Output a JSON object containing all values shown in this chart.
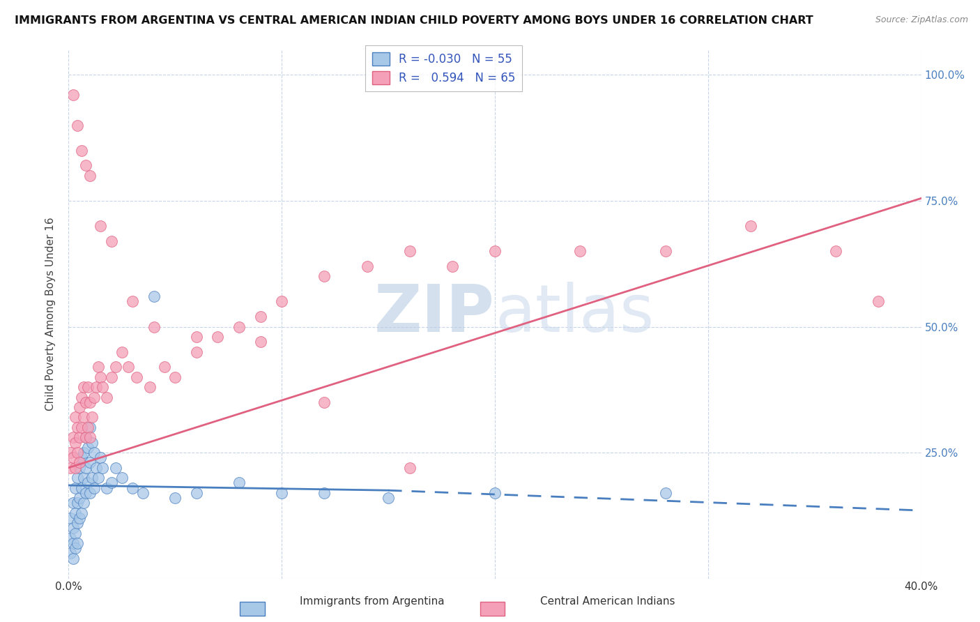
{
  "title": "IMMIGRANTS FROM ARGENTINA VS CENTRAL AMERICAN INDIAN CHILD POVERTY AMONG BOYS UNDER 16 CORRELATION CHART",
  "source": "Source: ZipAtlas.com",
  "ylabel": "Child Poverty Among Boys Under 16",
  "xlim": [
    0.0,
    0.4
  ],
  "ylim": [
    0.0,
    1.05
  ],
  "legend_R1": "-0.030",
  "legend_N1": "55",
  "legend_R2": "0.594",
  "legend_N2": "65",
  "color_blue": "#a8c8e8",
  "color_pink": "#f4a0b8",
  "line_blue": "#4a7fbf",
  "line_pink": "#e06080",
  "watermark_color": "#c8d8f0",
  "scatter_blue_x": [
    0.001,
    0.001,
    0.001,
    0.002,
    0.002,
    0.002,
    0.002,
    0.003,
    0.003,
    0.003,
    0.003,
    0.004,
    0.004,
    0.004,
    0.004,
    0.005,
    0.005,
    0.005,
    0.006,
    0.006,
    0.006,
    0.007,
    0.007,
    0.007,
    0.008,
    0.008,
    0.008,
    0.009,
    0.009,
    0.01,
    0.01,
    0.01,
    0.011,
    0.011,
    0.012,
    0.012,
    0.013,
    0.014,
    0.015,
    0.016,
    0.018,
    0.02,
    0.022,
    0.025,
    0.03,
    0.035,
    0.04,
    0.05,
    0.06,
    0.08,
    0.1,
    0.12,
    0.15,
    0.2,
    0.28
  ],
  "scatter_blue_y": [
    0.12,
    0.08,
    0.05,
    0.15,
    0.1,
    0.07,
    0.04,
    0.18,
    0.13,
    0.09,
    0.06,
    0.2,
    0.15,
    0.11,
    0.07,
    0.22,
    0.16,
    0.12,
    0.24,
    0.18,
    0.13,
    0.25,
    0.2,
    0.15,
    0.28,
    0.22,
    0.17,
    0.26,
    0.19,
    0.3,
    0.23,
    0.17,
    0.27,
    0.2,
    0.25,
    0.18,
    0.22,
    0.2,
    0.24,
    0.22,
    0.18,
    0.19,
    0.22,
    0.2,
    0.18,
    0.17,
    0.56,
    0.16,
    0.17,
    0.19,
    0.17,
    0.17,
    0.16,
    0.17,
    0.17
  ],
  "scatter_pink_x": [
    0.001,
    0.001,
    0.002,
    0.002,
    0.003,
    0.003,
    0.003,
    0.004,
    0.004,
    0.005,
    0.005,
    0.005,
    0.006,
    0.006,
    0.007,
    0.007,
    0.008,
    0.008,
    0.009,
    0.009,
    0.01,
    0.01,
    0.011,
    0.012,
    0.013,
    0.014,
    0.015,
    0.016,
    0.018,
    0.02,
    0.022,
    0.025,
    0.028,
    0.032,
    0.038,
    0.045,
    0.05,
    0.06,
    0.07,
    0.08,
    0.09,
    0.1,
    0.12,
    0.14,
    0.16,
    0.18,
    0.2,
    0.24,
    0.28,
    0.32,
    0.36,
    0.38,
    0.002,
    0.004,
    0.006,
    0.008,
    0.01,
    0.015,
    0.02,
    0.03,
    0.04,
    0.06,
    0.09,
    0.12,
    0.16
  ],
  "scatter_pink_y": [
    0.25,
    0.22,
    0.28,
    0.24,
    0.32,
    0.27,
    0.22,
    0.3,
    0.25,
    0.34,
    0.28,
    0.23,
    0.36,
    0.3,
    0.38,
    0.32,
    0.35,
    0.28,
    0.38,
    0.3,
    0.35,
    0.28,
    0.32,
    0.36,
    0.38,
    0.42,
    0.4,
    0.38,
    0.36,
    0.4,
    0.42,
    0.45,
    0.42,
    0.4,
    0.38,
    0.42,
    0.4,
    0.45,
    0.48,
    0.5,
    0.52,
    0.55,
    0.6,
    0.62,
    0.65,
    0.62,
    0.65,
    0.65,
    0.65,
    0.7,
    0.65,
    0.55,
    0.96,
    0.9,
    0.85,
    0.82,
    0.8,
    0.7,
    0.67,
    0.55,
    0.5,
    0.48,
    0.47,
    0.35,
    0.22
  ]
}
